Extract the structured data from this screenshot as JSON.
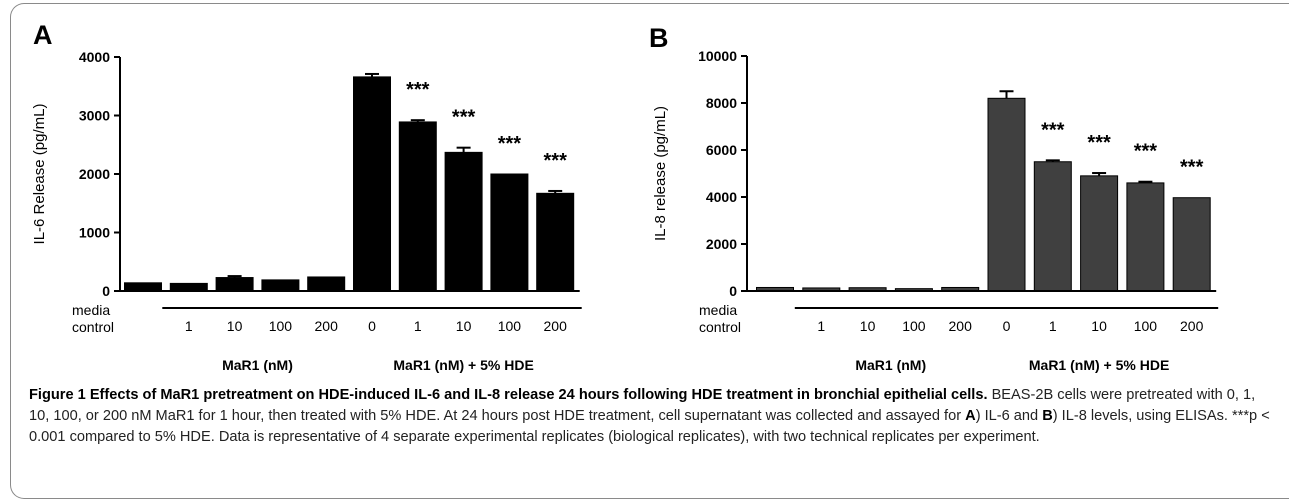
{
  "chart_data": [
    {
      "type": "bar",
      "panel_label": "A",
      "ylabel": "IL-6 Release (pg/mL)",
      "ylim": [
        0,
        4000
      ],
      "yticks": [
        0,
        1000,
        2000,
        3000,
        4000
      ],
      "categories": [
        "media control",
        "1",
        "10",
        "100",
        "200",
        "0",
        "1",
        "10",
        "100",
        "200"
      ],
      "values": [
        140,
        130,
        230,
        190,
        240,
        3660,
        2890,
        2370,
        2000,
        1670
      ],
      "errors": [
        0,
        0,
        25,
        0,
        0,
        50,
        30,
        80,
        0,
        40
      ],
      "significance": [
        "",
        "",
        "",
        "",
        "",
        "",
        "***",
        "***",
        "***",
        "***"
      ],
      "group_labels": [
        "MaR1 (nM)",
        "MaR1 (nM) + 5% HDE"
      ],
      "bar_color": "#000000"
    },
    {
      "type": "bar",
      "panel_label": "B",
      "ylabel": "IL-8 release (pg/mL)",
      "ylim": [
        0,
        10000
      ],
      "yticks": [
        0,
        2000,
        4000,
        6000,
        8000,
        10000
      ],
      "categories": [
        "media control",
        "1",
        "10",
        "100",
        "200",
        "0",
        "1",
        "10",
        "100",
        "200"
      ],
      "values": [
        150,
        130,
        140,
        100,
        150,
        8200,
        5500,
        4900,
        4600,
        3970
      ],
      "errors": [
        0,
        0,
        0,
        0,
        0,
        300,
        60,
        120,
        50,
        0
      ],
      "significance": [
        "",
        "",
        "",
        "",
        "",
        "",
        "***",
        "***",
        "***",
        "***"
      ],
      "group_labels": [
        "MaR1 (nM)",
        "MaR1 (nM) + 5% HDE"
      ],
      "bar_color": "#404040"
    }
  ],
  "caption": {
    "title": "Figure 1 Effects of MaR1 pretreatment on HDE-induced IL-6 and IL-8 release 24 hours following HDE treatment in bronchial epithelial cells.",
    "body_1": " BEAS-2B cells were pretreated with 0, 1, 10, 100, or 200 nM MaR1 for 1 hour, then treated with 5% HDE. At 24 hours post HDE treatment, cell supernatant was collected and assayed for ",
    "label_a": "A",
    "body_2": ") IL-6 and ",
    "label_b": "B",
    "body_3": ") IL-8 levels, using ELISAs. ***p < 0.001 compared to 5% HDE. Data is representative of 4 separate experimental replicates (biological replicates), with two technical replicates per experiment."
  }
}
